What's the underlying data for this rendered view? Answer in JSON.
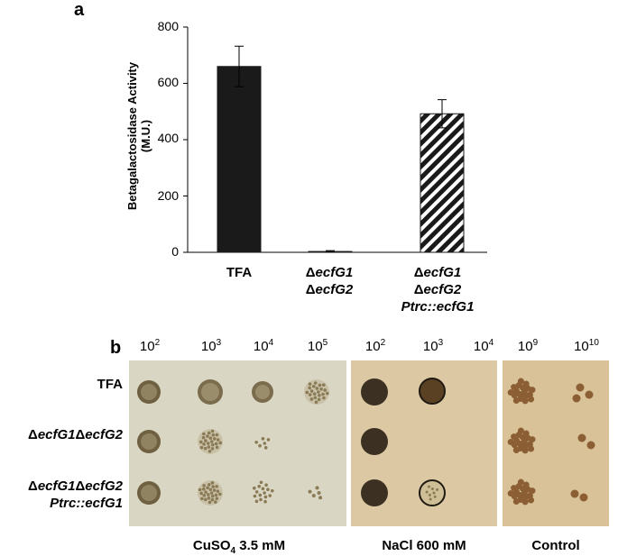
{
  "panel_a_label": "a",
  "panel_b_label": "b",
  "chart_data": {
    "type": "bar",
    "title": "",
    "xlabel": "",
    "ylabel": "Betagalactosidase Activity",
    "ylabel_line2": "(M.U.)",
    "ylim": [
      0,
      800
    ],
    "yticks": [
      "0",
      "200",
      "400",
      "600",
      "800"
    ],
    "categories": [
      {
        "prefix1": "TFA",
        "italic1": "",
        "prefix2": "",
        "italic2": "",
        "line3": ""
      },
      {
        "prefix1": "Δ",
        "italic1": "ecfG1",
        "prefix2": "Δ",
        "italic2": "ecfG2",
        "line3": ""
      },
      {
        "prefix1": "Δ",
        "italic1": "ecfG1",
        "prefix2": "Δ",
        "italic2": "ecfG2",
        "line3": "Ptrc::ecfG1"
      }
    ],
    "values": [
      660,
      3,
      492
    ],
    "errors": [
      72,
      3,
      50
    ],
    "fills": [
      "solid",
      "solid",
      "hatched"
    ],
    "bar_color": "#1a1a1a"
  },
  "spot_assay": {
    "rows": [
      {
        "label_1": "TFA",
        "label_1_italic": "",
        "label_1b": "",
        "label_1b_italic": "",
        "label_2": ""
      },
      {
        "label_1": "Δ",
        "label_1_italic": "ecfG1",
        "label_1b": "Δ",
        "label_1b_italic": "ecfG2",
        "label_2": ""
      },
      {
        "label_1": "Δ",
        "label_1_italic": "ecfG1",
        "label_1b": "Δ",
        "label_1b_italic": "ecfG2",
        "label_2": "Ptrc::ecfG1"
      }
    ],
    "plates": [
      {
        "name": "CuSO",
        "sub": "4",
        "rest": " 3.5 mM",
        "bg": "#d9d6c3",
        "dilutions": [
          {
            "b": "10",
            "e": "2"
          },
          {
            "b": "10",
            "e": "3"
          },
          {
            "b": "10",
            "e": "4"
          },
          {
            "b": "10",
            "e": "5"
          }
        ]
      },
      {
        "name": "NaCl 600 mM",
        "sub": "",
        "rest": "",
        "bg": "#dcc9a3",
        "dilutions": [
          {
            "b": "10",
            "e": "2"
          },
          {
            "b": "10",
            "e": "3"
          },
          {
            "b": "10",
            "e": "4"
          }
        ]
      },
      {
        "name": "Control",
        "sub": "",
        "rest": "",
        "bg": "#d9c198",
        "dilutions": [
          {
            "b": "10",
            "e": "9"
          },
          {
            "b": "10",
            "e": "10"
          }
        ]
      }
    ],
    "colors": {
      "spot_dark": "#3b3022",
      "spot_mid": "#8a7a55",
      "colony": "#8b5e34"
    }
  }
}
